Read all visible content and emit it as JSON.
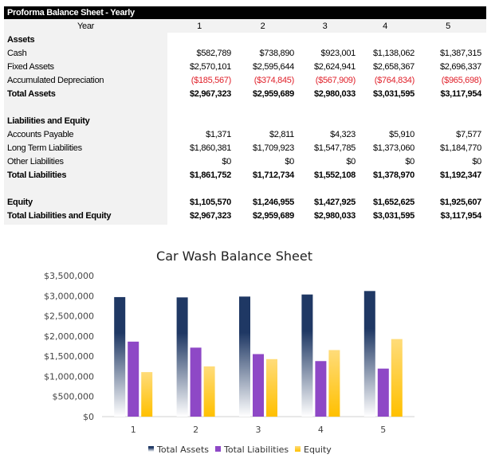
{
  "table": {
    "title": "Proforma Balance Sheet - Yearly",
    "year_label": "Year",
    "years": [
      "1",
      "2",
      "3",
      "4",
      "5"
    ],
    "rows": [
      {
        "label": "Assets",
        "bold": true,
        "values": []
      },
      {
        "label": "Cash",
        "values": [
          "$582,789",
          "$738,890",
          "$923,001",
          "$1,138,062",
          "$1,387,315"
        ]
      },
      {
        "label": "Fixed Assets",
        "values": [
          "$2,570,101",
          "$2,595,644",
          "$2,624,941",
          "$2,658,367",
          "$2,696,337"
        ]
      },
      {
        "label": "Accumulated Depreciation",
        "negative": true,
        "values": [
          "($185,567)",
          "($374,845)",
          "($567,909)",
          "($764,834)",
          "($965,698)"
        ]
      },
      {
        "label": "Total Assets",
        "bold": true,
        "values": [
          "$2,967,323",
          "$2,959,689",
          "$2,980,033",
          "$3,031,595",
          "$3,117,954"
        ]
      },
      {
        "label": "",
        "values": []
      },
      {
        "label": "Liabilities and Equity",
        "bold": true,
        "values": []
      },
      {
        "label": "Accounts Payable",
        "values": [
          "$1,371",
          "$2,811",
          "$4,323",
          "$5,910",
          "$7,577"
        ]
      },
      {
        "label": "Long Term Liabilities",
        "values": [
          "$1,860,381",
          "$1,709,923",
          "$1,547,785",
          "$1,373,060",
          "$1,184,770"
        ]
      },
      {
        "label": "Other Liabilities",
        "values": [
          "$0",
          "$0",
          "$0",
          "$0",
          "$0"
        ]
      },
      {
        "label": "Total Liabilities",
        "bold": true,
        "values": [
          "$1,861,752",
          "$1,712,734",
          "$1,552,108",
          "$1,378,970",
          "$1,192,347"
        ]
      },
      {
        "label": "",
        "values": []
      },
      {
        "label": "Equity",
        "bold": true,
        "values": [
          "$1,105,570",
          "$1,246,955",
          "$1,427,925",
          "$1,652,625",
          "$1,925,607"
        ]
      },
      {
        "label": "Total Liabilities and Equity",
        "bold": true,
        "values": [
          "$2,967,323",
          "$2,959,689",
          "$2,980,033",
          "$3,031,595",
          "$3,117,954"
        ]
      }
    ],
    "negative_color": "#e0202a"
  },
  "chart_data": {
    "type": "bar",
    "title": "Car Wash Balance Sheet",
    "categories": [
      "1",
      "2",
      "3",
      "4",
      "5"
    ],
    "series": [
      {
        "name": "Total Assets",
        "values": [
          2967323,
          2959689,
          2980033,
          3031595,
          3117954
        ],
        "color": "#1f3864"
      },
      {
        "name": "Total Liabilities",
        "values": [
          1861752,
          1712734,
          1552108,
          1378970,
          1192347
        ],
        "color": "#8e48c6"
      },
      {
        "name": "Equity",
        "values": [
          1105570,
          1246955,
          1427925,
          1652625,
          1925607
        ],
        "color": "#ffc000"
      }
    ],
    "ylim": [
      0,
      3500000
    ],
    "yticks": [
      "$0",
      "$500,000",
      "$1,000,000",
      "$1,500,000",
      "$2,000,000",
      "$2,500,000",
      "$3,000,000",
      "$3,500,000"
    ],
    "grid": false,
    "legend": "bottom"
  }
}
